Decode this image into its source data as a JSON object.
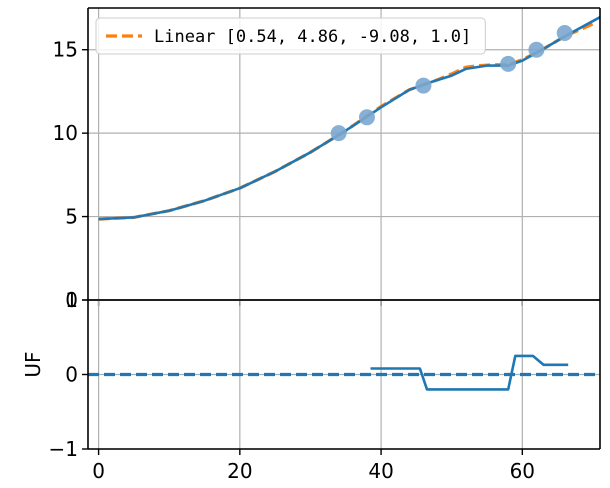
{
  "chart_data": [
    {
      "panel": "top",
      "type": "line",
      "xlim": [
        -1.5,
        71
      ],
      "ylim": [
        0,
        17.5
      ],
      "x_ticks": [
        0,
        20,
        40,
        60
      ],
      "y_ticks": [
        0,
        5,
        10,
        15
      ],
      "grid": true,
      "legend_placement": "top-left",
      "series": [
        {
          "name": "Linear [0.54, 4.86, -9.08, 1.0]",
          "style": "dashed",
          "color": "#ff7f0e",
          "x": [
            0,
            5,
            10,
            15,
            20,
            25,
            30,
            35,
            40,
            44,
            48,
            50,
            52,
            54,
            56,
            58,
            60,
            63,
            66,
            70
          ],
          "y": [
            4.85,
            4.95,
            5.35,
            5.95,
            6.7,
            7.7,
            8.85,
            10.15,
            11.6,
            12.6,
            13.2,
            13.55,
            13.95,
            14.05,
            14.1,
            14.1,
            14.4,
            15.05,
            15.8,
            16.55
          ]
        },
        {
          "name": "",
          "style": "solid",
          "color": "#1f77b4",
          "x": [
            0,
            5,
            10,
            15,
            20,
            25,
            30,
            35,
            40,
            44,
            47,
            50,
            52,
            55,
            58,
            60,
            63,
            66,
            71
          ],
          "y": [
            4.85,
            4.95,
            5.35,
            5.95,
            6.7,
            7.7,
            8.85,
            10.15,
            11.55,
            12.6,
            13.05,
            13.45,
            13.85,
            14.05,
            14.05,
            14.35,
            15.05,
            15.8,
            16.95
          ]
        }
      ],
      "points": {
        "color": "#7ba7cf",
        "x": [
          34,
          38,
          46,
          58,
          62,
          66
        ],
        "y": [
          10.0,
          10.95,
          12.85,
          14.15,
          15.0,
          16.0
        ]
      }
    },
    {
      "panel": "bottom",
      "type": "line",
      "ylabel": "UF",
      "xlim": [
        -1.5,
        71
      ],
      "ylim": [
        -1,
        1
      ],
      "x_ticks": [
        0,
        20,
        40,
        60
      ],
      "y_ticks": [
        -1,
        0,
        1
      ],
      "grid": true,
      "series": [
        {
          "name": "",
          "style": "dashed",
          "color": "#1f77b4",
          "x": [
            -1.5,
            71
          ],
          "y": [
            0,
            0
          ]
        },
        {
          "name": "",
          "style": "solid",
          "color": "#1f77b4",
          "x": [
            38.5,
            45.5,
            46.5,
            58,
            59,
            61.5,
            63,
            66.5
          ],
          "y": [
            0.08,
            0.08,
            -0.2,
            -0.2,
            0.25,
            0.25,
            0.13,
            0.13
          ]
        }
      ]
    }
  ]
}
